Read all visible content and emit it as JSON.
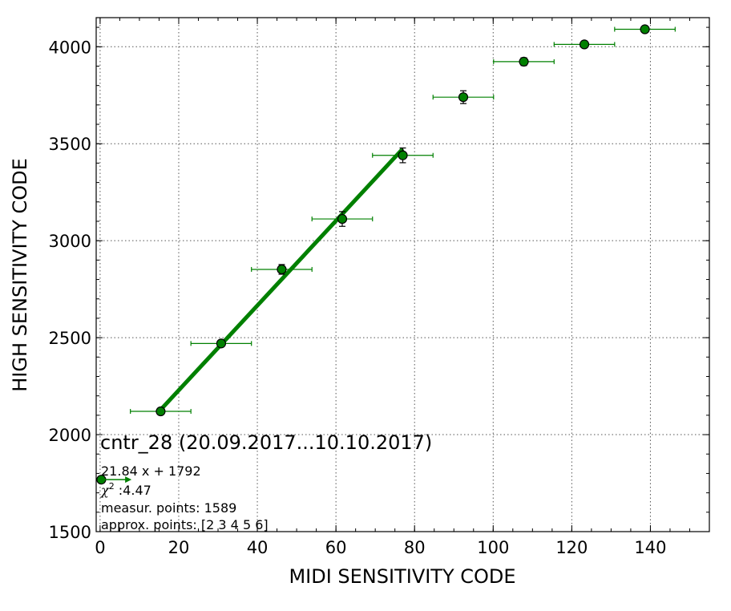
{
  "chart_data": {
    "type": "scatter",
    "xlabel": "MIDI SENSITIVITY CODE",
    "ylabel": "HIGH SENSITIVITY CODE",
    "xlim": [
      -1,
      155
    ],
    "ylim": [
      1500,
      4150
    ],
    "xticks": [
      0,
      20,
      40,
      60,
      80,
      100,
      120,
      140
    ],
    "yticks": [
      1500,
      2000,
      2500,
      3000,
      3500,
      4000
    ],
    "xminor_step": 5,
    "yminor_step": 100,
    "grid": true,
    "colors": {
      "points": "#008000",
      "fit": "#008000",
      "edge": "#000000"
    },
    "points": [
      {
        "x": 0.3,
        "y": 1768,
        "xerr": 0,
        "yerr": 0
      },
      {
        "x": 15.4,
        "y": 2120,
        "xerr": 7.7,
        "yerr": 12
      },
      {
        "x": 30.8,
        "y": 2470,
        "xerr": 7.7,
        "yerr": 15
      },
      {
        "x": 46.2,
        "y": 2852,
        "xerr": 7.7,
        "yerr": 25
      },
      {
        "x": 61.6,
        "y": 3112,
        "xerr": 7.7,
        "yerr": 38
      },
      {
        "x": 77.0,
        "y": 3440,
        "xerr": 7.7,
        "yerr": 38
      },
      {
        "x": 92.4,
        "y": 3740,
        "xerr": 7.7,
        "yerr": 33
      },
      {
        "x": 107.8,
        "y": 3923,
        "xerr": 7.7,
        "yerr": 20
      },
      {
        "x": 123.2,
        "y": 4012,
        "xerr": 7.7,
        "yerr": 15
      },
      {
        "x": 138.6,
        "y": 4090,
        "xerr": 7.7,
        "yerr": 12
      }
    ],
    "fit_line": {
      "slope": 21.84,
      "intercept": 1792,
      "x_start": 15.4,
      "x_end": 77.0
    },
    "arrow": {
      "x_start": 0.3,
      "x_end": 8.0,
      "y": 1768
    },
    "annotation": {
      "title": "cntr_28 (20.09.2017...10.10.2017)",
      "equation": "21.84 x + 1792",
      "chi2_symbol": "χ",
      "chi2_exp": "2",
      "chi2_value": " :4.47",
      "measured": "measur. points: 1589",
      "approx": "approx. points: [2 3 4 5 6]"
    }
  }
}
